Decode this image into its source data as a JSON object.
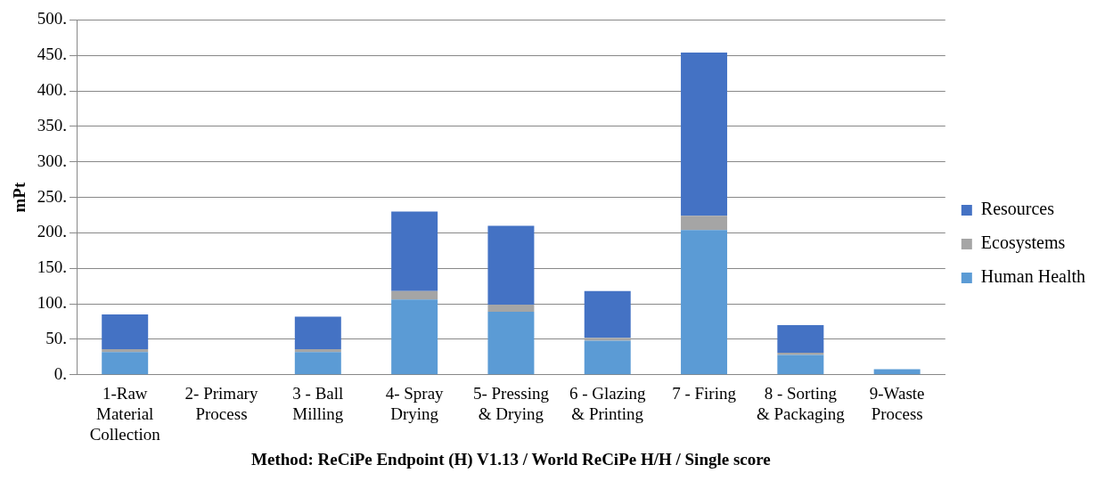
{
  "chart_data": {
    "type": "bar",
    "stacked": true,
    "xlabel": "Method: ReCiPe Endpoint (H) V1.13 / World ReCiPe H/H / Single score",
    "ylabel": "mPt",
    "categories": [
      "1-Raw Material Collection",
      "2- Primary Process",
      "3 - Ball Milling",
      "4- Spray Drying",
      "5- Pressing & Drying",
      "6 - Glazing & Printing",
      "7 - Firing",
      "8 - Sorting & Packaging",
      "9-Waste Process"
    ],
    "series": [
      {
        "name": "Human Health",
        "color": "#5b9bd5",
        "values": [
          32,
          null,
          32,
          106,
          89,
          48,
          204,
          28,
          8
        ]
      },
      {
        "name": "Ecosystems",
        "color": "#a5a5a5",
        "values": [
          4,
          0,
          4,
          12,
          10,
          4,
          20,
          3,
          0
        ]
      },
      {
        "name": "Resources",
        "color": "#4472c4",
        "values": [
          49,
          0,
          46,
          112,
          111,
          66,
          230,
          39,
          0
        ]
      }
    ],
    "ylim": [
      0,
      500
    ],
    "yticks": [
      {
        "value": 0,
        "label": "0."
      },
      {
        "value": 50,
        "label": "50."
      },
      {
        "value": 100,
        "label": "100."
      },
      {
        "value": 150,
        "label": "150."
      },
      {
        "value": 200,
        "label": "200."
      },
      {
        "value": 250,
        "label": "250."
      },
      {
        "value": 300,
        "label": "300."
      },
      {
        "value": 350,
        "label": "350."
      },
      {
        "value": 400,
        "label": "400."
      },
      {
        "value": 450,
        "label": "450."
      },
      {
        "value": 500,
        "label": "500."
      }
    ],
    "grid": "y",
    "legend": "right"
  }
}
